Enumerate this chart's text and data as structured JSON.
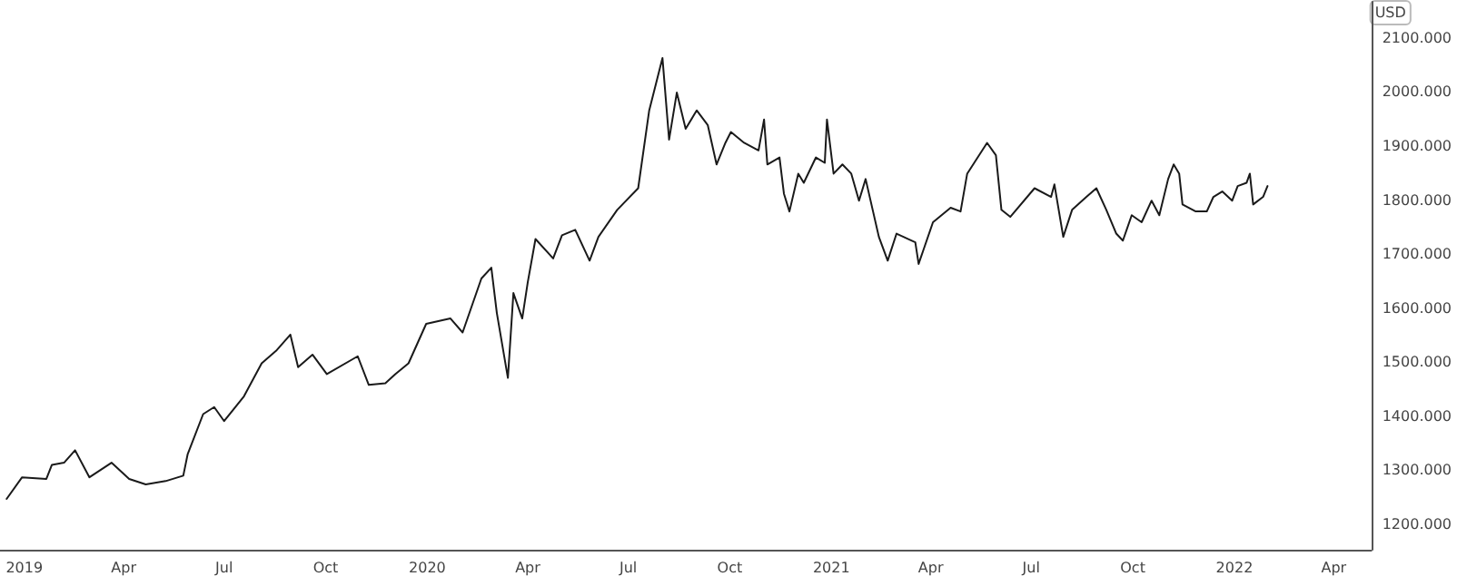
{
  "chart_data": {
    "type": "line",
    "ylabel": "USD",
    "color": "#1a1a1a",
    "marker": "none",
    "line_style": "solid",
    "x": [
      "2018-12-16",
      "2018-12-30",
      "2019-01-21",
      "2019-01-26",
      "2019-02-06",
      "2019-02-16",
      "2019-03-01",
      "2019-03-21",
      "2019-04-06",
      "2019-04-21",
      "2019-05-09",
      "2019-05-25",
      "2019-05-29",
      "2019-06-12",
      "2019-06-22",
      "2019-07-01",
      "2019-07-19",
      "2019-08-04",
      "2019-08-17",
      "2019-08-30",
      "2019-09-06",
      "2019-09-19",
      "2019-10-02",
      "2019-10-30",
      "2019-11-09",
      "2019-11-24",
      "2019-12-03",
      "2019-12-15",
      "2019-12-31",
      "2020-01-22",
      "2020-02-02",
      "2020-02-19",
      "2020-02-28",
      "2020-03-04",
      "2020-03-14",
      "2020-03-19",
      "2020-03-27",
      "2020-04-01",
      "2020-04-08",
      "2020-04-24",
      "2020-05-02",
      "2020-05-14",
      "2020-05-27",
      "2020-06-04",
      "2020-06-21",
      "2020-07-10",
      "2020-07-20",
      "2020-08-01",
      "2020-08-07",
      "2020-08-14",
      "2020-08-22",
      "2020-09-01",
      "2020-09-11",
      "2020-09-19",
      "2020-09-27",
      "2020-10-02",
      "2020-10-14",
      "2020-10-27",
      "2020-11-01",
      "2020-11-04",
      "2020-11-15",
      "2020-11-19",
      "2020-11-24",
      "2020-12-02",
      "2020-12-07",
      "2020-12-18",
      "2020-12-26",
      "2020-12-28",
      "2021-01-03",
      "2021-01-11",
      "2021-01-19",
      "2021-01-26",
      "2021-02-01",
      "2021-02-13",
      "2021-02-21",
      "2021-03-01",
      "2021-03-18",
      "2021-03-21",
      "2021-04-03",
      "2021-04-19",
      "2021-04-28",
      "2021-05-04",
      "2021-05-22",
      "2021-05-30",
      "2021-06-04",
      "2021-06-12",
      "2021-07-04",
      "2021-07-19",
      "2021-07-22",
      "2021-07-30",
      "2021-08-07",
      "2021-08-20",
      "2021-08-29",
      "2021-09-07",
      "2021-09-16",
      "2021-09-22",
      "2021-09-30",
      "2021-10-09",
      "2021-10-18",
      "2021-10-25",
      "2021-11-02",
      "2021-11-07",
      "2021-11-12",
      "2021-11-15",
      "2021-11-27",
      "2021-12-07",
      "2021-12-13",
      "2021-12-21",
      "2021-12-30",
      "2022-01-04",
      "2022-01-12",
      "2022-01-15",
      "2022-01-18",
      "2022-01-27",
      "2022-01-31"
    ],
    "values": [
      1247,
      1287,
      1284,
      1310,
      1314,
      1337,
      1287,
      1314,
      1284,
      1274,
      1280,
      1290,
      1330,
      1404,
      1417,
      1391,
      1437,
      1498,
      1521,
      1551,
      1491,
      1514,
      1478,
      1511,
      1458,
      1461,
      1478,
      1498,
      1571,
      1581,
      1555,
      1655,
      1675,
      1591,
      1471,
      1628,
      1581,
      1648,
      1728,
      1692,
      1735,
      1745,
      1688,
      1732,
      1782,
      1822,
      1966,
      2063,
      1912,
      1999,
      1932,
      1966,
      1939,
      1866,
      1906,
      1926,
      1906,
      1892,
      1949,
      1866,
      1879,
      1812,
      1779,
      1849,
      1832,
      1879,
      1869,
      1949,
      1849,
      1866,
      1849,
      1799,
      1839,
      1732,
      1688,
      1738,
      1722,
      1682,
      1759,
      1786,
      1779,
      1849,
      1906,
      1883,
      1782,
      1769,
      1822,
      1806,
      1829,
      1732,
      1782,
      1806,
      1822,
      1782,
      1738,
      1725,
      1772,
      1759,
      1799,
      1772,
      1839,
      1866,
      1849,
      1792,
      1779,
      1779,
      1806,
      1816,
      1799,
      1826,
      1832,
      1849,
      1792,
      1806,
      1826
    ],
    "xlim": [
      "2018-12-10",
      "2022-05-05"
    ],
    "xticks": [
      {
        "value": "2019-01-01",
        "label": "2019"
      },
      {
        "value": "2019-04-01",
        "label": "Apr"
      },
      {
        "value": "2019-07-01",
        "label": "Jul"
      },
      {
        "value": "2019-10-01",
        "label": "Oct"
      },
      {
        "value": "2020-01-01",
        "label": "2020"
      },
      {
        "value": "2020-04-01",
        "label": "Apr"
      },
      {
        "value": "2020-07-01",
        "label": "Jul"
      },
      {
        "value": "2020-10-01",
        "label": "Oct"
      },
      {
        "value": "2021-01-01",
        "label": "2021"
      },
      {
        "value": "2021-04-01",
        "label": "Apr"
      },
      {
        "value": "2021-07-01",
        "label": "Jul"
      },
      {
        "value": "2021-10-01",
        "label": "Oct"
      },
      {
        "value": "2022-01-01",
        "label": "2022"
      },
      {
        "value": "2022-04-01",
        "label": "Apr"
      }
    ],
    "ylim": [
      1153,
      2167
    ],
    "yticks": [
      {
        "value": 1200,
        "label": "1200.000"
      },
      {
        "value": 1300,
        "label": "1300.000"
      },
      {
        "value": 1400,
        "label": "1400.000"
      },
      {
        "value": 1500,
        "label": "1500.000"
      },
      {
        "value": 1600,
        "label": "1600.000"
      },
      {
        "value": 1700,
        "label": "1700.000"
      },
      {
        "value": 1800,
        "label": "1800.000"
      },
      {
        "value": 1900,
        "label": "1900.000"
      },
      {
        "value": 2000,
        "label": "2000.000"
      },
      {
        "value": 2100,
        "label": "2100.000"
      }
    ]
  }
}
